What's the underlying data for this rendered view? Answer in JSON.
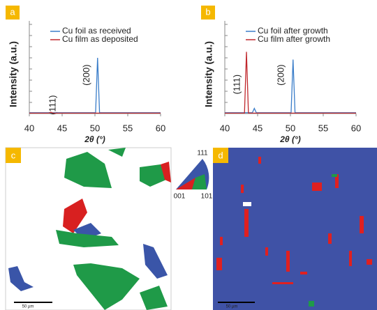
{
  "chart_data": [
    {
      "type": "line",
      "panel_label": "a",
      "xlabel": "2θ (°)",
      "ylabel": "Intensity (a.u.)",
      "x": [
        40,
        43.0,
        43.3,
        43.6,
        44.2,
        44.5,
        44.8,
        50.1,
        50.4,
        50.7,
        60
      ],
      "series": [
        {
          "name": "Cu foil as received",
          "color": "#3a7dc9",
          "values": [
            1,
            1,
            1,
            1,
            1,
            1,
            1,
            1,
            65,
            1,
            1
          ]
        },
        {
          "name": "Cu film as deposited",
          "color": "#c0282d",
          "values": [
            0.5,
            0.5,
            1.5,
            0.5,
            0.5,
            0.5,
            0.5,
            0.5,
            0.5,
            0.5,
            0.5
          ]
        }
      ],
      "xlim": [
        40,
        60
      ],
      "xticks": [
        40,
        45,
        50,
        55,
        60
      ],
      "ylim": [
        0,
        100
      ],
      "annotations": [
        "(111)",
        "(200)"
      ],
      "legend": "upper center"
    },
    {
      "type": "line",
      "panel_label": "b",
      "xlabel": "2θ (°)",
      "ylabel": "Intensity (a.u.)",
      "x": [
        40,
        43.0,
        43.3,
        43.6,
        44.2,
        44.5,
        44.8,
        50.1,
        50.4,
        50.7,
        60
      ],
      "series": [
        {
          "name": "Cu foil after growth",
          "color": "#3a7dc9",
          "values": [
            1,
            1,
            1,
            1,
            1,
            6,
            1,
            1,
            63,
            1,
            1
          ]
        },
        {
          "name": "Cu film after growth",
          "color": "#c0282d",
          "values": [
            0.5,
            0.5,
            72,
            0.5,
            0.5,
            0.5,
            0.5,
            0.5,
            0.5,
            0.5,
            0.5
          ]
        }
      ],
      "xlim": [
        40,
        60
      ],
      "xticks": [
        40,
        45,
        50,
        55,
        60
      ],
      "ylim": [
        0,
        100
      ],
      "annotations": [
        "(111)",
        "(200)"
      ],
      "legend": "upper center"
    }
  ],
  "maps": [
    {
      "label": "c",
      "scale_bar": "50 µm"
    },
    {
      "label": "d",
      "scale_bar": "50 µm"
    }
  ],
  "ipf_legend": {
    "top": "111",
    "left": "001",
    "right": "101"
  }
}
